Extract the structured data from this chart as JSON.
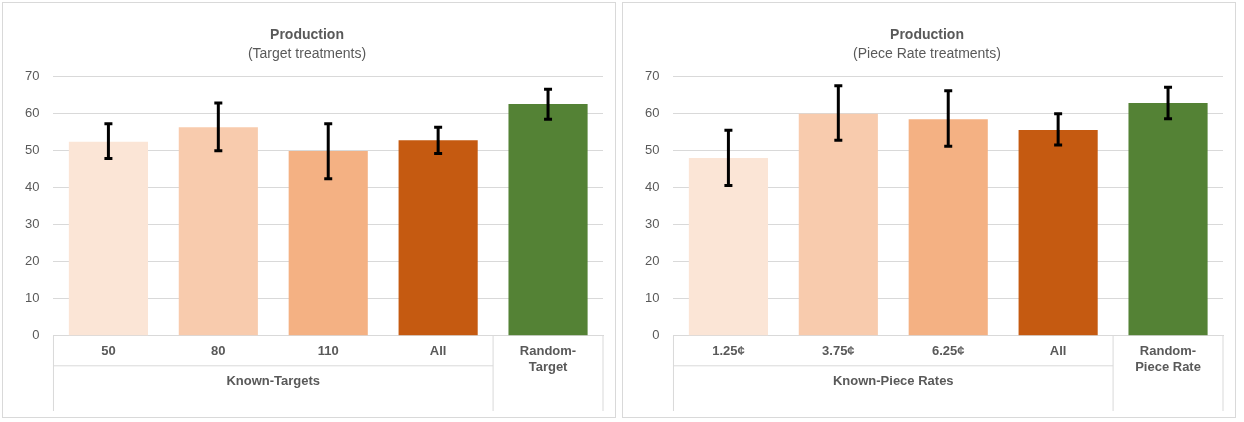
{
  "chart_data": [
    {
      "type": "bar",
      "title": "Production",
      "subtitle": "(Target treatments)",
      "xlabel": "Known-Targets",
      "categories": [
        "50",
        "80",
        "110",
        "All",
        "Random-Target"
      ],
      "values": [
        52.4,
        56.3,
        49.9,
        52.8,
        62.6
      ],
      "errors": [
        [
          47.9,
          57.3
        ],
        [
          50.0,
          62.9
        ],
        [
          42.4,
          57.3
        ],
        [
          49.2,
          56.3
        ],
        [
          58.5,
          66.6
        ]
      ],
      "colors": [
        "#fbe5d6",
        "#f8cbad",
        "#f4b183",
        "#c55a11",
        "#548235"
      ],
      "ylim": [
        0,
        70
      ],
      "yticks": [
        0,
        10,
        20,
        30,
        40,
        50,
        60,
        70
      ],
      "grid": "y"
    },
    {
      "type": "bar",
      "title": "Production",
      "subtitle": "(Piece Rate treatments)",
      "xlabel": "Known-Piece Rates",
      "categories": [
        "1.25¢",
        "3.75¢",
        "6.25¢",
        "All",
        "Random-Piece Rate"
      ],
      "values": [
        48.0,
        60.0,
        58.5,
        55.6,
        62.9
      ],
      "errors": [
        [
          40.6,
          55.5
        ],
        [
          52.8,
          67.5
        ],
        [
          51.2,
          66.2
        ],
        [
          51.5,
          60.0
        ],
        [
          58.6,
          67.1
        ]
      ],
      "colors": [
        "#fbe5d6",
        "#f8cbad",
        "#f4b183",
        "#c55a11",
        "#548235"
      ],
      "ylim": [
        0,
        70
      ],
      "yticks": [
        0,
        10,
        20,
        30,
        40,
        50,
        60,
        70
      ],
      "grid": "y"
    }
  ]
}
